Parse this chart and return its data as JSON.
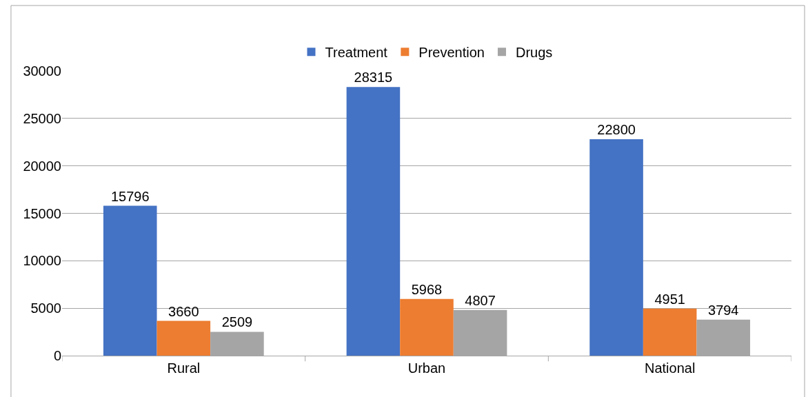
{
  "chart_data": {
    "type": "bar",
    "categories": [
      "Rural",
      "Urban",
      "National"
    ],
    "series": [
      {
        "name": "Treatment",
        "color": "#4472c4",
        "values": [
          15796,
          28315,
          22800
        ]
      },
      {
        "name": "Prevention",
        "color": "#ed7d31",
        "values": [
          3660,
          5968,
          4951
        ]
      },
      {
        "name": "Drugs",
        "color": "#a5a5a5",
        "values": [
          2509,
          4807,
          3794
        ]
      }
    ],
    "ylim": [
      0,
      30000
    ],
    "yticks": [
      0,
      5000,
      10000,
      15000,
      20000,
      25000,
      30000
    ],
    "grid": "y",
    "legend": "top",
    "data_labels": true
  }
}
